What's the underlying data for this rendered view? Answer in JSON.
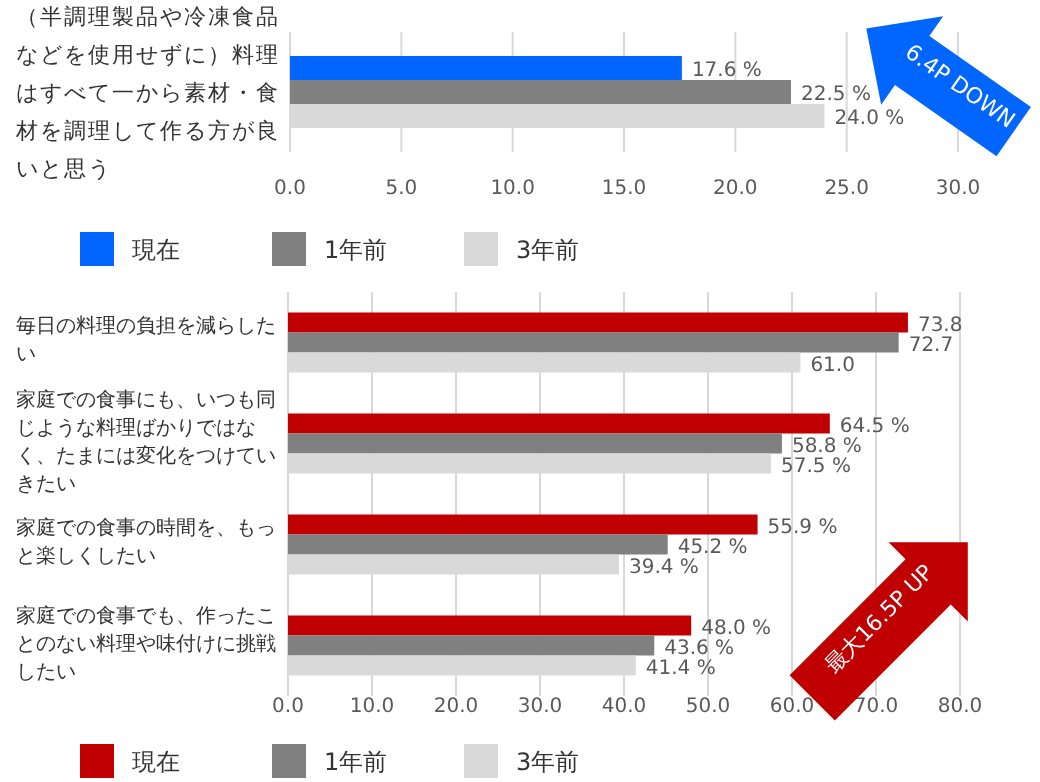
{
  "chart_data": [
    {
      "type": "bar",
      "orientation": "horizontal",
      "categories": [
        "（半調理製品や冷凍食品などを使用せずに）料理はすべて一から素材・食材を調理して作る方が良いと思う"
      ],
      "series": [
        {
          "name": "現在",
          "color": "#0066ff",
          "values": [
            17.6
          ],
          "value_labels": [
            "17.6 %"
          ]
        },
        {
          "name": "1年前",
          "color": "#808080",
          "values": [
            22.5
          ],
          "value_labels": [
            "22.5 %"
          ]
        },
        {
          "name": "3年前",
          "color": "#d9d9d9",
          "values": [
            24.0
          ],
          "value_labels": [
            "24.0 %"
          ]
        }
      ],
      "xlim": [
        0,
        30
      ],
      "xticks": [
        {
          "value": 0,
          "label": "0.0"
        },
        {
          "value": 5,
          "label": "5.0"
        },
        {
          "value": 10,
          "label": "10.0"
        },
        {
          "value": 15,
          "label": "15.0"
        },
        {
          "value": 20,
          "label": "20.0"
        },
        {
          "value": 25,
          "label": "25.0"
        },
        {
          "value": 30,
          "label": "30.0"
        }
      ],
      "grid": "x",
      "legend": "bottom",
      "annotations": [
        "6.4P DOWN"
      ]
    },
    {
      "type": "bar",
      "orientation": "horizontal",
      "categories": [
        "毎日の料理の負担を減らしたい",
        "家庭での食事にも、いつも同じような料理ばかりではなく、たまには変化をつけていきたい",
        "家庭での食事の時間を、もっと楽しくしたい",
        "家庭での食事でも、作ったことのない料理や味付けに挑戦したい"
      ],
      "series": [
        {
          "name": "現在",
          "color": "#c00000",
          "values": [
            73.8,
            64.5,
            55.9,
            48.0
          ],
          "value_labels": [
            "73.8",
            "64.5 %",
            "55.9 %",
            "48.0 %"
          ]
        },
        {
          "name": "1年前",
          "color": "#808080",
          "values": [
            72.7,
            58.8,
            45.2,
            43.6
          ],
          "value_labels": [
            "72.7",
            "58.8 %",
            "45.2 %",
            "43.6 %"
          ]
        },
        {
          "name": "3年前",
          "color": "#d9d9d9",
          "values": [
            61.0,
            57.5,
            39.4,
            41.4
          ],
          "value_labels": [
            "61.0",
            "57.5 %",
            "39.4 %",
            "41.4 %"
          ]
        }
      ],
      "xlim": [
        0,
        80
      ],
      "xticks": [
        {
          "value": 0,
          "label": "0.0"
        },
        {
          "value": 10,
          "label": "10.0"
        },
        {
          "value": 20,
          "label": "20.0"
        },
        {
          "value": 30,
          "label": "30.0"
        },
        {
          "value": 40,
          "label": "40.0"
        },
        {
          "value": 50,
          "label": "50.0"
        },
        {
          "value": 60,
          "label": "60.0"
        },
        {
          "value": 70,
          "label": "70.0"
        },
        {
          "value": 80,
          "label": "80.0"
        }
      ],
      "grid": "x",
      "legend": "bottom",
      "annotations": [
        "最大16.5P UP"
      ]
    }
  ]
}
